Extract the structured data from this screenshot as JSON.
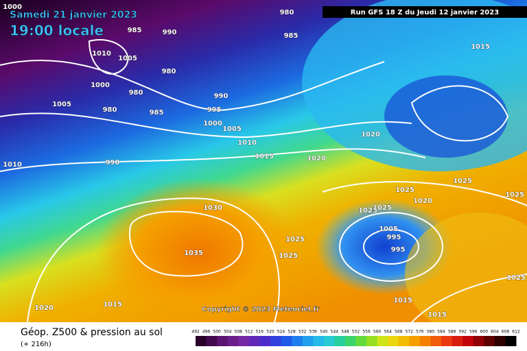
{
  "header": {
    "valid_date": "Samedi 21 janvier 2023",
    "valid_time": "19:00 locale",
    "run": "Run GFS 18 Z du Jeudi 12 janvier 2023"
  },
  "copyright": "Copyright © 2023 Meteociel.fr",
  "footer": {
    "title": "Géop. Z500 & pression au sol",
    "lead": "(+ 216h)"
  },
  "colorbar": {
    "labels": [
      492,
      496,
      500,
      504,
      508,
      512,
      516,
      520,
      524,
      528,
      532,
      536,
      540,
      544,
      548,
      552,
      556,
      560,
      564,
      568,
      572,
      576,
      580,
      584,
      588,
      592,
      596,
      600,
      604,
      608,
      612
    ]
  },
  "isobars": {
    "labels": [
      1000,
      980,
      985,
      990,
      985,
      1015,
      1010,
      1005,
      980,
      1000,
      980,
      990,
      1005,
      980,
      985,
      995,
      1000,
      1005,
      1010,
      1020,
      1015,
      1020,
      990,
      1010,
      1025,
      1025,
      1020,
      1025,
      1030,
      1025,
      1025,
      1005,
      995,
      1025,
      1035,
      995,
      1025,
      1015,
      1025,
      1020,
      1015,
      1015
    ]
  }
}
